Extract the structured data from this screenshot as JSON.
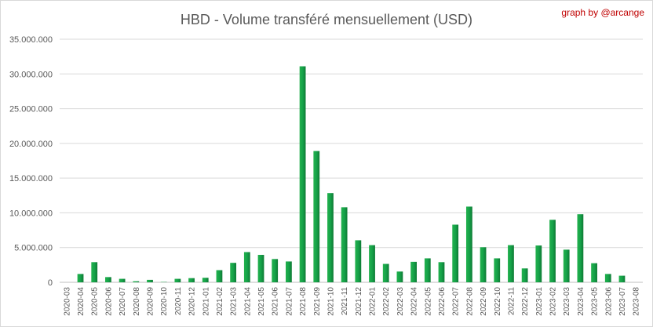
{
  "chart_data": {
    "type": "bar",
    "title": "HBD - Volume transféré mensuellement (USD)",
    "credit": "graph by @arcange",
    "xlabel": "",
    "ylabel": "",
    "ylim": [
      0,
      35000000
    ],
    "yticks": [
      0,
      5000000,
      10000000,
      15000000,
      20000000,
      25000000,
      30000000,
      35000000
    ],
    "ytick_labels": [
      "0",
      "5.000.000",
      "10.000.000",
      "15.000.000",
      "20.000.000",
      "25.000.000",
      "30.000.000",
      "35.000.000"
    ],
    "grid": true,
    "bar_color": "#16a34a",
    "categories": [
      "2020-03",
      "2020-04",
      "2020-05",
      "2020-06",
      "2020-07",
      "2020-08",
      "2020-09",
      "2020-10",
      "2020-11",
      "2020-12",
      "2021-01",
      "2021-02",
      "2021-03",
      "2021-04",
      "2021-05",
      "2021-06",
      "2021-07",
      "2021-08",
      "2021-09",
      "2021-10",
      "2021-11",
      "2021-12",
      "2022-01",
      "2022-02",
      "2022-03",
      "2022-04",
      "2022-05",
      "2022-06",
      "2022-07",
      "2022-08",
      "2022-09",
      "2022-10",
      "2022-11",
      "2022-12",
      "2023-01",
      "2023-02",
      "2023-03",
      "2023-04",
      "2023-05",
      "2023-06",
      "2023-07",
      "2023-08"
    ],
    "values": [
      0,
      1200000,
      2900000,
      750000,
      500000,
      150000,
      350000,
      50000,
      500000,
      600000,
      650000,
      1750000,
      2800000,
      4350000,
      3950000,
      3350000,
      3000000,
      31100000,
      18900000,
      12850000,
      10800000,
      6050000,
      5350000,
      2650000,
      1550000,
      2950000,
      3450000,
      2900000,
      8300000,
      10900000,
      5050000,
      3450000,
      5350000,
      2000000,
      5300000,
      9000000,
      4700000,
      9800000,
      2750000,
      1200000,
      950000,
      0
    ]
  }
}
